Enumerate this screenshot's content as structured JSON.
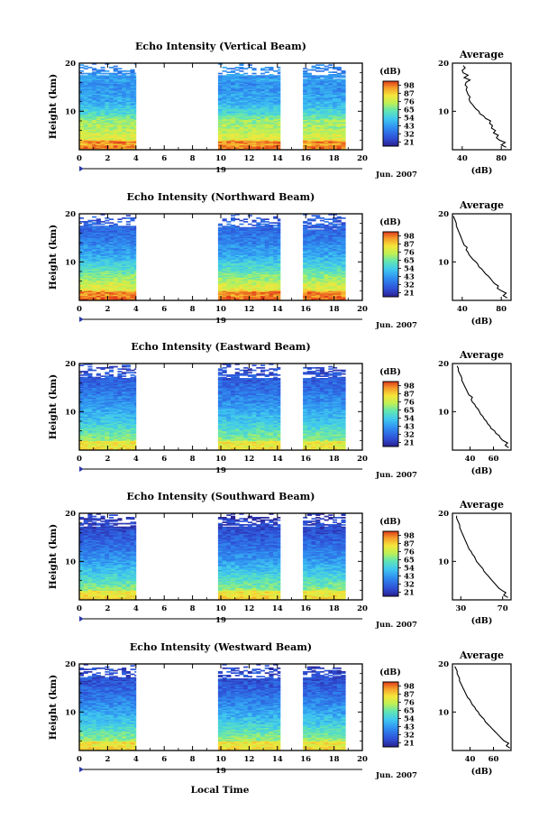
{
  "figure": {
    "xlabel": "Local Time",
    "date_label": "Jun. 2007",
    "day_label": "19",
    "avg_title": "Average",
    "avg_xlabel": "(dB)",
    "colorbar_unit": "(dB)",
    "ylabel": "Height (km)"
  },
  "chart_data": [
    {
      "type": "heatmap",
      "title": "Echo Intensity (Vertical Beam)",
      "ylabel": "Height (km)",
      "x_ticks": [
        "0",
        "2",
        "4",
        "6",
        "8",
        "10",
        "12",
        "14",
        "16",
        "18",
        "20"
      ],
      "xlim": [
        0,
        20
      ],
      "y_ticks": [
        "10",
        "20"
      ],
      "ylim": [
        2,
        20
      ],
      "data_gaps_hours": [
        [
          4,
          9.8
        ],
        [
          14.2,
          15.8
        ]
      ],
      "data_end_hour": 18.8,
      "colorbar": {
        "ticks": [
          "21",
          "32",
          "43",
          "54",
          "65",
          "76",
          "87",
          "98"
        ],
        "range": [
          21,
          98
        ]
      },
      "average_profile": {
        "xticks": [
          "40",
          "80"
        ],
        "xlim": [
          30,
          90
        ],
        "ylim": [
          2,
          20
        ],
        "yticks": [
          "10",
          "20"
        ],
        "heights_km": [
          2.5,
          3,
          3.5,
          4,
          4.5,
          5,
          5.5,
          6,
          6.5,
          7,
          7.5,
          8,
          8.5,
          9,
          9.5,
          10,
          10.5,
          11,
          11.5,
          12,
          12.5,
          13,
          13.5,
          14,
          14.5,
          15,
          15.5,
          16,
          16.5,
          17,
          17.5,
          18,
          18.5,
          19,
          19.5
        ],
        "values_db": [
          85,
          80,
          84,
          78,
          75,
          77,
          72,
          74,
          70,
          71,
          68,
          69,
          64,
          62,
          58,
          57,
          54,
          52,
          50,
          48,
          47,
          48,
          46,
          45,
          44,
          45,
          43,
          44,
          48,
          42,
          46,
          41,
          40,
          43,
          41
        ]
      }
    },
    {
      "type": "heatmap",
      "title": "Echo Intensity (Northward Beam)",
      "ylabel": "Height (km)",
      "x_ticks": [
        "0",
        "2",
        "4",
        "6",
        "8",
        "10",
        "12",
        "14",
        "16",
        "18",
        "20"
      ],
      "xlim": [
        0,
        20
      ],
      "y_ticks": [
        "10",
        "20"
      ],
      "ylim": [
        2,
        20
      ],
      "data_gaps_hours": [
        [
          4,
          9.8
        ],
        [
          14.2,
          15.8
        ]
      ],
      "data_end_hour": 18.8,
      "colorbar": {
        "ticks": [
          "21",
          "32",
          "43",
          "54",
          "65",
          "76",
          "87",
          "98"
        ],
        "range": [
          21,
          98
        ]
      },
      "average_profile": {
        "xticks": [
          "40",
          "80"
        ],
        "xlim": [
          30,
          90
        ],
        "ylim": [
          2,
          20
        ],
        "yticks": [
          "10",
          "20"
        ],
        "heights_km": [
          2.5,
          3,
          3.5,
          4,
          4.5,
          5,
          5.5,
          6,
          6.5,
          7,
          7.5,
          8,
          8.5,
          9,
          9.5,
          10,
          10.5,
          11,
          11.5,
          12,
          12.5,
          13,
          13.5,
          14,
          14.5,
          15,
          15.5,
          16,
          16.5,
          17,
          17.5,
          18,
          18.5,
          19,
          19.5
        ],
        "values_db": [
          86,
          82,
          85,
          80,
          76,
          77,
          73,
          71,
          69,
          67,
          64,
          62,
          60,
          57,
          56,
          54,
          51,
          49,
          47,
          46,
          44,
          45,
          42,
          41,
          40,
          39,
          38,
          37,
          36,
          35,
          34,
          34,
          33,
          32,
          31
        ]
      }
    },
    {
      "type": "heatmap",
      "title": "Echo Intensity (Eastward Beam)",
      "ylabel": "Height (km)",
      "x_ticks": [
        "0",
        "2",
        "4",
        "6",
        "8",
        "10",
        "12",
        "14",
        "16",
        "18",
        "20"
      ],
      "xlim": [
        0,
        20
      ],
      "y_ticks": [
        "10",
        "20"
      ],
      "ylim": [
        2,
        20
      ],
      "data_gaps_hours": [
        [
          4,
          9.8
        ],
        [
          14.2,
          15.8
        ]
      ],
      "data_end_hour": 18.8,
      "colorbar": {
        "ticks": [
          "21",
          "32",
          "43",
          "54",
          "65",
          "76",
          "87",
          "98"
        ],
        "range": [
          21,
          98
        ]
      },
      "average_profile": {
        "xticks": [
          "40",
          "60"
        ],
        "xlim": [
          25,
          75
        ],
        "ylim": [
          2,
          20
        ],
        "yticks": [
          "10",
          "20"
        ],
        "heights_km": [
          2.5,
          3,
          3.5,
          4,
          4.5,
          5,
          5.5,
          6,
          6.5,
          7,
          7.5,
          8,
          8.5,
          9,
          9.5,
          10,
          10.5,
          11,
          11.5,
          12,
          12.5,
          13,
          13.5,
          14,
          14.5,
          15,
          15.5,
          16,
          16.5,
          17,
          17.5,
          18,
          18.5,
          19,
          19.5
        ],
        "values_db": [
          73,
          70,
          72,
          68,
          66,
          65,
          62,
          61,
          58,
          57,
          55,
          54,
          52,
          51,
          49,
          48,
          47,
          45,
          44,
          42,
          41,
          42,
          39,
          38,
          37,
          36,
          35,
          34,
          33,
          33,
          32,
          31,
          30,
          30,
          29
        ]
      }
    },
    {
      "type": "heatmap",
      "title": "Echo Intensity (Southward Beam)",
      "ylabel": "Height (km)",
      "x_ticks": [
        "0",
        "2",
        "4",
        "6",
        "8",
        "10",
        "12",
        "14",
        "16",
        "18",
        "20"
      ],
      "xlim": [
        0,
        20
      ],
      "y_ticks": [
        "10",
        "20"
      ],
      "ylim": [
        2,
        20
      ],
      "data_gaps_hours": [
        [
          4,
          9.8
        ],
        [
          14.2,
          15.8
        ]
      ],
      "data_end_hour": 18.8,
      "colorbar": {
        "ticks": [
          "21",
          "32",
          "43",
          "54",
          "65",
          "76",
          "87",
          "98"
        ],
        "range": [
          21,
          98
        ]
      },
      "average_profile": {
        "xticks": [
          "30",
          "70"
        ],
        "xlim": [
          22,
          78
        ],
        "ylim": [
          2,
          20
        ],
        "yticks": [
          "10",
          "20"
        ],
        "heights_km": [
          2.5,
          3,
          3.5,
          4,
          4.5,
          5,
          5.5,
          6,
          6.5,
          7,
          7.5,
          8,
          8.5,
          9,
          9.5,
          10,
          10.5,
          11,
          11.5,
          12,
          12.5,
          13,
          13.5,
          14,
          14.5,
          15,
          15.5,
          16,
          16.5,
          17,
          17.5,
          18,
          18.5,
          19,
          19.5
        ],
        "values_db": [
          75,
          71,
          73,
          69,
          66,
          64,
          62,
          60,
          58,
          56,
          54,
          52,
          51,
          49,
          47,
          45,
          44,
          43,
          41,
          40,
          38,
          37,
          36,
          35,
          34,
          33,
          32,
          31,
          30,
          29,
          29,
          28,
          27,
          26,
          26
        ]
      }
    },
    {
      "type": "heatmap",
      "title": "Echo Intensity (Westward Beam)",
      "ylabel": "Height (km)",
      "x_ticks": [
        "0",
        "2",
        "4",
        "6",
        "8",
        "10",
        "12",
        "14",
        "16",
        "18",
        "20"
      ],
      "xlim": [
        0,
        20
      ],
      "y_ticks": [
        "10",
        "20"
      ],
      "ylim": [
        2,
        20
      ],
      "data_gaps_hours": [
        [
          4,
          9.8
        ],
        [
          14.2,
          15.8
        ]
      ],
      "data_end_hour": 18.8,
      "colorbar": {
        "ticks": [
          "21",
          "32",
          "43",
          "54",
          "65",
          "76",
          "87",
          "98"
        ],
        "range": [
          21,
          98
        ]
      },
      "average_profile": {
        "xticks": [
          "40",
          "60"
        ],
        "xlim": [
          25,
          75
        ],
        "ylim": [
          2,
          20
        ],
        "yticks": [
          "10",
          "20"
        ],
        "heights_km": [
          2.5,
          3,
          3.5,
          4,
          4.5,
          5,
          5.5,
          6,
          6.5,
          7,
          7.5,
          8,
          8.5,
          9,
          9.5,
          10,
          10.5,
          11,
          11.5,
          12,
          12.5,
          13,
          13.5,
          14,
          14.5,
          15,
          15.5,
          16,
          16.5,
          17,
          17.5,
          18,
          18.5,
          19,
          19.5
        ],
        "values_db": [
          74,
          71,
          73,
          69,
          67,
          65,
          63,
          61,
          59,
          57,
          55,
          53,
          52,
          50,
          48,
          47,
          45,
          44,
          42,
          41,
          40,
          38,
          37,
          36,
          35,
          34,
          33,
          32,
          31,
          31,
          30,
          29,
          29,
          28,
          27
        ]
      }
    }
  ]
}
